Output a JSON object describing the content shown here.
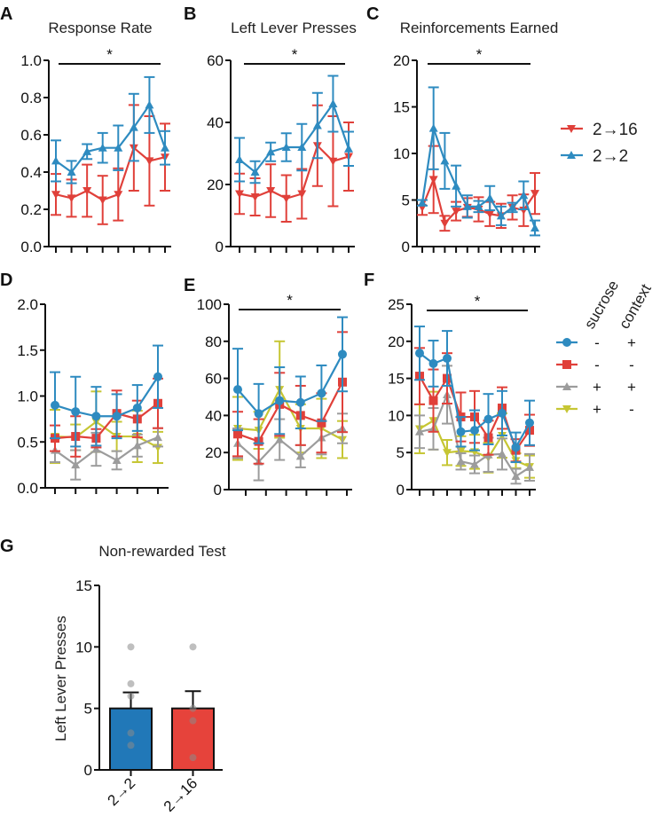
{
  "colors": {
    "blue": "#2e8bc0",
    "red": "#e0403a",
    "gray": "#9c9c9c",
    "yellow": "#c6c634",
    "bar_blue": "#2178b8",
    "bar_red": "#e6433b",
    "point": "#8a8a8a"
  },
  "chart_data": [
    {
      "id": "A",
      "letter": "A",
      "type": "line",
      "title": "Response Rate",
      "ylim": [
        0,
        1
      ],
      "yticks": [
        0,
        0.2,
        0.4,
        0.6,
        0.8,
        1.0
      ],
      "ytick_labels": [
        "0.0",
        "0.2",
        "0.4",
        "0.6",
        "0.8",
        "1.0"
      ],
      "n": 8,
      "significance": "*",
      "series": [
        {
          "name": "2→16",
          "color": "red",
          "marker": "triangle-down",
          "values": [
            0.28,
            0.26,
            0.3,
            0.25,
            0.28,
            0.53,
            0.46,
            0.48
          ],
          "sem": [
            0.11,
            0.1,
            0.14,
            0.13,
            0.14,
            0.23,
            0.24,
            0.18
          ]
        },
        {
          "name": "2→2",
          "color": "blue",
          "marker": "triangle-up",
          "values": [
            0.46,
            0.4,
            0.51,
            0.53,
            0.53,
            0.64,
            0.76,
            0.53
          ],
          "sem": [
            0.11,
            0.06,
            0.04,
            0.08,
            0.12,
            0.18,
            0.15,
            0.09
          ]
        }
      ]
    },
    {
      "id": "B",
      "letter": "B",
      "type": "line",
      "title": "Left Lever Presses",
      "ylim": [
        0,
        60
      ],
      "yticks": [
        0,
        20,
        40,
        60
      ],
      "ytick_labels": [
        "0",
        "20",
        "40",
        "60"
      ],
      "n": 8,
      "significance": "*",
      "series": [
        {
          "name": "2→16",
          "color": "red",
          "marker": "triangle-down",
          "values": [
            17,
            16,
            18,
            15.5,
            17,
            32.5,
            27.5,
            29
          ],
          "sem": [
            6.5,
            6,
            8.5,
            7.5,
            8,
            13,
            14.5,
            11
          ]
        },
        {
          "name": "2→2",
          "color": "blue",
          "marker": "triangle-up",
          "values": [
            28,
            24,
            30.5,
            32,
            32,
            39,
            46,
            31.5
          ],
          "sem": [
            7,
            3.5,
            3,
            4.5,
            7.5,
            10.5,
            9,
            5.5
          ]
        }
      ]
    },
    {
      "id": "C",
      "letter": "C",
      "type": "line",
      "title": "Reinforcements Earned",
      "ylim": [
        0,
        20
      ],
      "yticks": [
        0,
        5,
        10,
        15,
        20
      ],
      "ytick_labels": [
        "0",
        "5",
        "10",
        "15",
        "20"
      ],
      "n": 11,
      "significance": "*",
      "series": [
        {
          "name": "2→16",
          "color": "red",
          "marker": "triangle-down",
          "values": [
            4.2,
            7.2,
            2.5,
            3.8,
            4.2,
            4.0,
            3.5,
            3.3,
            4.2,
            3.9,
            5.7
          ],
          "sem": [
            0.8,
            3.6,
            0.8,
            1.0,
            1.0,
            1.3,
            1.3,
            1.3,
            1.3,
            1.7,
            2.2
          ]
        },
        {
          "name": "2→2",
          "color": "blue",
          "marker": "triangle-up",
          "values": [
            4.7,
            12.7,
            9.2,
            6.5,
            4.3,
            4.3,
            5.2,
            3.3,
            4.2,
            5.5,
            2.0
          ],
          "sem": [
            0.3,
            4.4,
            3.0,
            2.2,
            1.2,
            0.6,
            1.3,
            1.0,
            0.5,
            1.5,
            0.8
          ]
        }
      ]
    },
    {
      "id": "D",
      "letter": "D",
      "type": "line",
      "title": "",
      "ylim": [
        0,
        2
      ],
      "yticks": [
        0,
        0.5,
        1,
        1.5,
        2
      ],
      "ytick_labels": [
        "0.0",
        "0.5",
        "1.0",
        "1.5",
        "2.0"
      ],
      "n": 6,
      "significance": "",
      "series": [
        {
          "color": "yellow",
          "marker": "triangle-down",
          "values": [
            0.56,
            0.55,
            0.72,
            0.56,
            0.56,
            0.44
          ],
          "sem": [
            0.29,
            0.14,
            0.33,
            0.16,
            0.28,
            0.17
          ]
        },
        {
          "color": "gray",
          "marker": "triangle-up",
          "values": [
            0.41,
            0.25,
            0.42,
            0.3,
            0.46,
            0.55
          ],
          "sem": [
            0.13,
            0.16,
            0.18,
            0.1,
            0.12,
            0.1
          ]
        },
        {
          "color": "red",
          "marker": "square",
          "values": [
            0.54,
            0.56,
            0.54,
            0.81,
            0.75,
            0.92
          ],
          "sem": [
            0.14,
            0.22,
            0.1,
            0.25,
            0.2,
            0.27
          ]
        },
        {
          "color": "blue",
          "marker": "circle",
          "values": [
            0.9,
            0.83,
            0.78,
            0.78,
            0.87,
            1.21
          ],
          "sem": [
            0.36,
            0.38,
            0.32,
            0.24,
            0.25,
            0.34
          ]
        }
      ]
    },
    {
      "id": "E",
      "letter": "E",
      "type": "line",
      "title": "",
      "ylim": [
        0,
        100
      ],
      "yticks": [
        0,
        20,
        40,
        60,
        80,
        100
      ],
      "ytick_labels": [
        "0",
        "20",
        "40",
        "60",
        "80",
        "100"
      ],
      "n": 6,
      "significance": "*",
      "series": [
        {
          "color": "yellow",
          "marker": "triangle-down",
          "values": [
            33,
            32,
            54,
            33,
            33,
            27
          ],
          "sem": [
            17,
            10,
            26,
            13,
            16,
            10
          ]
        },
        {
          "color": "gray",
          "marker": "triangle-up",
          "values": [
            25,
            15,
            27,
            18,
            28,
            33
          ],
          "sem": [
            8,
            10,
            11,
            6,
            9,
            8
          ]
        },
        {
          "color": "red",
          "marker": "square",
          "values": [
            30,
            26,
            46,
            40,
            36,
            58
          ],
          "sem": [
            12,
            12,
            17,
            16,
            16,
            27
          ]
        },
        {
          "color": "blue",
          "marker": "circle",
          "values": [
            54,
            41,
            48,
            47,
            52,
            73
          ],
          "sem": [
            22,
            16,
            18,
            14,
            15,
            20
          ]
        }
      ]
    },
    {
      "id": "F",
      "letter": "F",
      "type": "line",
      "title": "",
      "ylim": [
        0,
        25
      ],
      "yticks": [
        0,
        5,
        10,
        15,
        20,
        25
      ],
      "ytick_labels": [
        "0",
        "5",
        "10",
        "15",
        "20",
        "25"
      ],
      "n": 9,
      "significance": "*",
      "series": [
        {
          "color": "yellow",
          "marker": "triangle-down",
          "values": [
            8.2,
            9.3,
            5.0,
            5.2,
            5.1,
            4.3,
            7.3,
            3.9,
            3.1
          ],
          "sem": [
            3.3,
            3.9,
            1.7,
            2.0,
            2.3,
            2.0,
            3.0,
            1.0,
            1.5
          ]
        },
        {
          "color": "gray",
          "marker": "triangle-up",
          "values": [
            7.8,
            8.2,
            12.8,
            3.8,
            3.4,
            4.7,
            4.8,
            1.8,
            3.0
          ],
          "sem": [
            2.2,
            2.8,
            3.9,
            1.1,
            1.2,
            2.3,
            2.1,
            1.0,
            1.8
          ]
        },
        {
          "color": "red",
          "marker": "square",
          "values": [
            15.3,
            12.0,
            15.0,
            9.8,
            9.8,
            7.0,
            11.0,
            5.3,
            8.0
          ],
          "sem": [
            3.8,
            4.2,
            3.4,
            3.3,
            3.5,
            2.3,
            2.8,
            1.5,
            2.1
          ]
        },
        {
          "color": "blue",
          "marker": "circle",
          "values": [
            18.4,
            17.0,
            17.7,
            7.8,
            8.0,
            9.5,
            10.3,
            5.7,
            9.0
          ],
          "sem": [
            3.6,
            3.1,
            3.7,
            2.0,
            2.7,
            3.4,
            3.0,
            2.0,
            3.0
          ]
        }
      ]
    },
    {
      "id": "G",
      "letter": "G",
      "type": "bar",
      "title": "Non-rewarded Test",
      "ylabel": "Left Lever Presses",
      "ylim": [
        0,
        15
      ],
      "yticks": [
        0,
        5,
        10,
        15
      ],
      "ytick_labels": [
        "0",
        "5",
        "10",
        "15"
      ],
      "categories": [
        "2→2",
        "2→16"
      ],
      "values": [
        5.0,
        5.0
      ],
      "sem": [
        1.3,
        1.4
      ],
      "bar_colors": [
        "bar_blue",
        "bar_red"
      ],
      "points": [
        [
          10,
          7,
          6,
          3,
          2
        ],
        [
          10,
          5,
          4,
          1
        ]
      ]
    }
  ],
  "legend_top": {
    "items": [
      {
        "label": "2→16",
        "color": "red",
        "marker": "triangle-down"
      },
      {
        "label": "2→2",
        "color": "blue",
        "marker": "triangle-up"
      }
    ]
  },
  "legend_bottom": {
    "headers": [
      "sucrose",
      "context"
    ],
    "rows": [
      {
        "color": "blue",
        "marker": "circle",
        "sucrose": "-",
        "context": "+"
      },
      {
        "color": "red",
        "marker": "square",
        "sucrose": "-",
        "context": "-"
      },
      {
        "color": "gray",
        "marker": "triangle-up",
        "sucrose": "+",
        "context": "+"
      },
      {
        "color": "yellow",
        "marker": "triangle-down",
        "sucrose": "+",
        "context": "-"
      }
    ]
  }
}
